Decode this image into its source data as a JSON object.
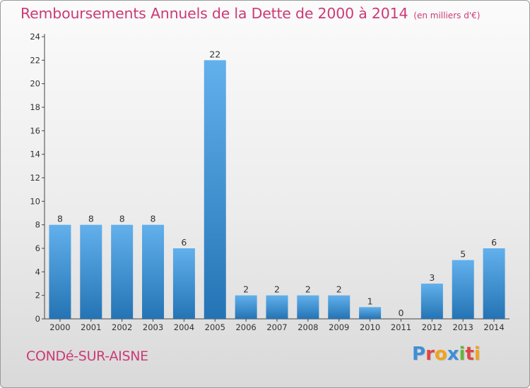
{
  "header": {
    "title": "Remboursements Annuels de la Dette de 2000 à 2014",
    "unit": "(en milliers d'€)"
  },
  "footer": {
    "commune": "CONDé-SUR-AISNE",
    "logo_text": "Proxiti",
    "logo_colors": [
      "#3d8fd6",
      "#e04545",
      "#f2a21b",
      "#3d8fd6",
      "#67b53b",
      "#e04545",
      "#f2a21b"
    ]
  },
  "colors": {
    "bar_top": "#62b0ec",
    "bar_bottom": "#2474b5",
    "title": "#cc3a76",
    "axis": "#444444"
  },
  "chart_data": {
    "type": "bar",
    "title": "Remboursements Annuels de la Dette de 2000 à 2014",
    "subtitle": "(en milliers d'€)",
    "xlabel": "",
    "ylabel": "",
    "categories": [
      "2000",
      "2001",
      "2002",
      "2003",
      "2004",
      "2005",
      "2006",
      "2007",
      "2008",
      "2009",
      "2010",
      "2011",
      "2012",
      "2013",
      "2014"
    ],
    "values": [
      8,
      8,
      8,
      8,
      6,
      22,
      2,
      2,
      2,
      2,
      1,
      0,
      3,
      5,
      6
    ],
    "ylim": [
      0,
      24
    ],
    "yticks": [
      0,
      2,
      4,
      6,
      8,
      10,
      12,
      14,
      16,
      18,
      20,
      22,
      24
    ],
    "grid": false,
    "legend": "none"
  }
}
